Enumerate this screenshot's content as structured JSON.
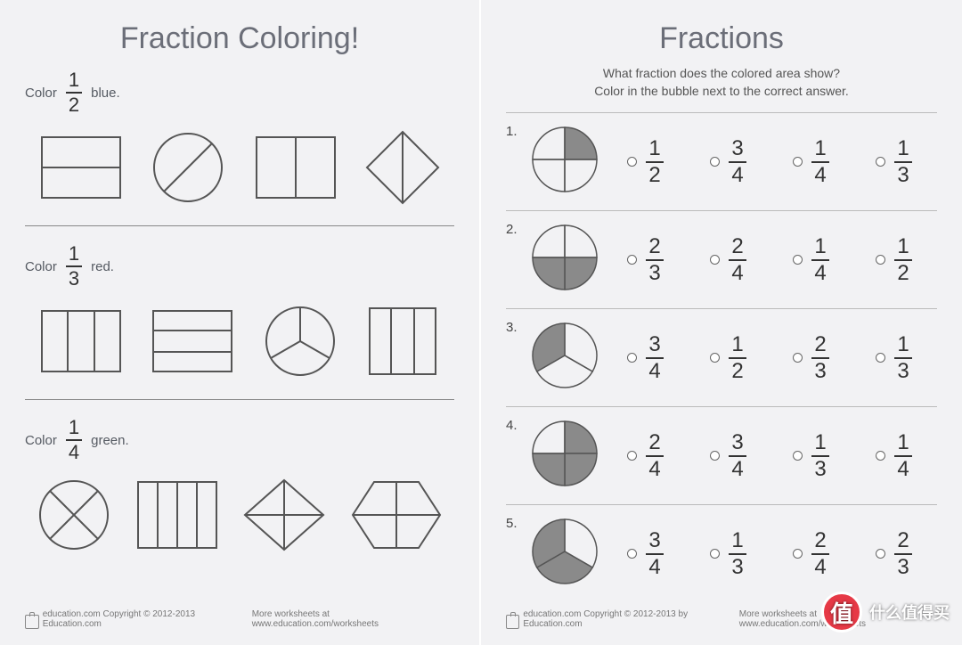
{
  "left": {
    "title": "Fraction Coloring!",
    "sections": [
      {
        "pre": "Color",
        "num": "1",
        "den": "2",
        "post": "blue."
      },
      {
        "pre": "Color",
        "num": "1",
        "den": "3",
        "post": "red."
      },
      {
        "pre": "Color",
        "num": "1",
        "den": "4",
        "post": "green."
      }
    ],
    "footer_brand": "education.com",
    "footer_copy": "Copyright © 2012-2013 Education.com",
    "footer_more": "More worksheets at www.education.com/worksheets"
  },
  "right": {
    "title": "Fractions",
    "sub1": "What fraction does the colored area show?",
    "sub2": "Color in the bubble next to the correct answer.",
    "questions": [
      {
        "n": "1.",
        "slices": 4,
        "shaded": [
          0
        ],
        "opts": [
          [
            "1",
            "2"
          ],
          [
            "3",
            "4"
          ],
          [
            "1",
            "4"
          ],
          [
            "1",
            "3"
          ]
        ]
      },
      {
        "n": "2.",
        "slices": 4,
        "shaded": [
          1,
          2
        ],
        "opts": [
          [
            "2",
            "3"
          ],
          [
            "2",
            "4"
          ],
          [
            "1",
            "4"
          ],
          [
            "1",
            "2"
          ]
        ]
      },
      {
        "n": "3.",
        "slices": 3,
        "shaded": [
          2
        ],
        "opts": [
          [
            "3",
            "4"
          ],
          [
            "1",
            "2"
          ],
          [
            "2",
            "3"
          ],
          [
            "1",
            "3"
          ]
        ]
      },
      {
        "n": "4.",
        "slices": 4,
        "shaded": [
          0,
          1,
          2
        ],
        "opts": [
          [
            "2",
            "4"
          ],
          [
            "3",
            "4"
          ],
          [
            "1",
            "3"
          ],
          [
            "1",
            "4"
          ]
        ]
      },
      {
        "n": "5.",
        "slices": 3,
        "shaded": [
          1,
          2
        ],
        "opts": [
          [
            "3",
            "4"
          ],
          [
            "1",
            "3"
          ],
          [
            "2",
            "4"
          ],
          [
            "2",
            "3"
          ]
        ]
      }
    ],
    "footer_brand": "education.com",
    "footer_copy": "Copyright © 2012-2013 by Education.com",
    "footer_more": "More worksheets at www.education.com/worksheets"
  },
  "stroke": "#555555",
  "fill_shade": "#8a8a8a",
  "bg": "#f2f2f4",
  "watermark": "什么值得买",
  "watermark_badge": "值"
}
